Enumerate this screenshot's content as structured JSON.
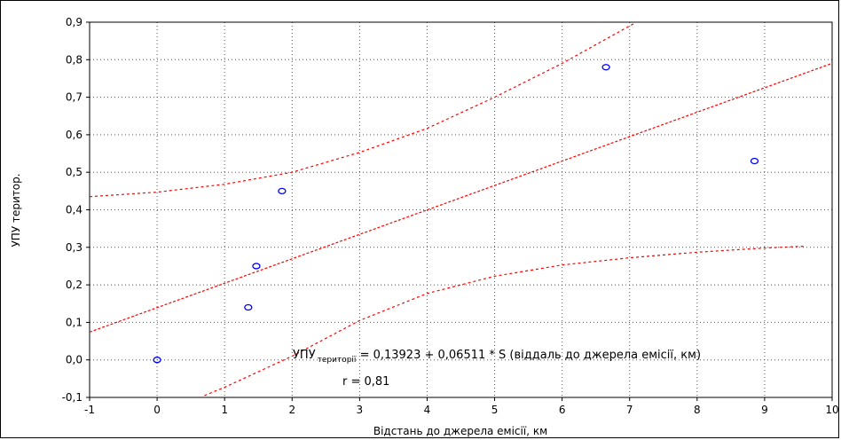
{
  "chart_data": {
    "type": "scatter",
    "title": "",
    "xlabel": "Відстань до джерела емісії, км",
    "ylabel": "УПУ територ.",
    "xlim": [
      -1,
      10
    ],
    "ylim": [
      -0.1,
      0.9
    ],
    "x_ticks": [
      "-1",
      "0",
      "1",
      "2",
      "3",
      "4",
      "5",
      "6",
      "7",
      "8",
      "9",
      "10"
    ],
    "y_ticks": [
      "-0,1",
      "0,0",
      "0,1",
      "0,2",
      "0,3",
      "0,4",
      "0,5",
      "0,6",
      "0,7",
      "0,8",
      "0,9"
    ],
    "grid": true,
    "points": [
      {
        "x": 0.0,
        "y": 0.0
      },
      {
        "x": 1.35,
        "y": 0.14
      },
      {
        "x": 1.47,
        "y": 0.25
      },
      {
        "x": 1.85,
        "y": 0.45
      },
      {
        "x": 6.65,
        "y": 0.78
      },
      {
        "x": 8.85,
        "y": 0.53
      }
    ],
    "regression": {
      "intercept": 0.13923,
      "slope": 0.06511
    },
    "confidence_band": {
      "upper": [
        [
          -1,
          0.435
        ],
        [
          0,
          0.447
        ],
        [
          1,
          0.468
        ],
        [
          2,
          0.5
        ],
        [
          3,
          0.553
        ],
        [
          4,
          0.617
        ],
        [
          5,
          0.7
        ],
        [
          6,
          0.79
        ],
        [
          6.8,
          0.87
        ],
        [
          7.3,
          0.92
        ]
      ],
      "lower": [
        [
          0.7,
          -0.095
        ],
        [
          1,
          -0.073
        ],
        [
          2,
          0.01
        ],
        [
          3,
          0.105
        ],
        [
          4,
          0.177
        ],
        [
          5,
          0.223
        ],
        [
          6,
          0.253
        ],
        [
          7,
          0.272
        ],
        [
          8,
          0.287
        ],
        [
          9,
          0.298
        ],
        [
          9.6,
          0.303
        ]
      ]
    },
    "colors": {
      "points": "#0000ff",
      "lines": "#ff0000",
      "grid": "#555555"
    },
    "annotations": {
      "eq_main": "УПУ",
      "eq_sub": "території",
      "eq_rest": " = 0,13923 + 0,06511 * S (віддаль до джерела емісії, км)",
      "r_text": "r = 0,81"
    }
  }
}
